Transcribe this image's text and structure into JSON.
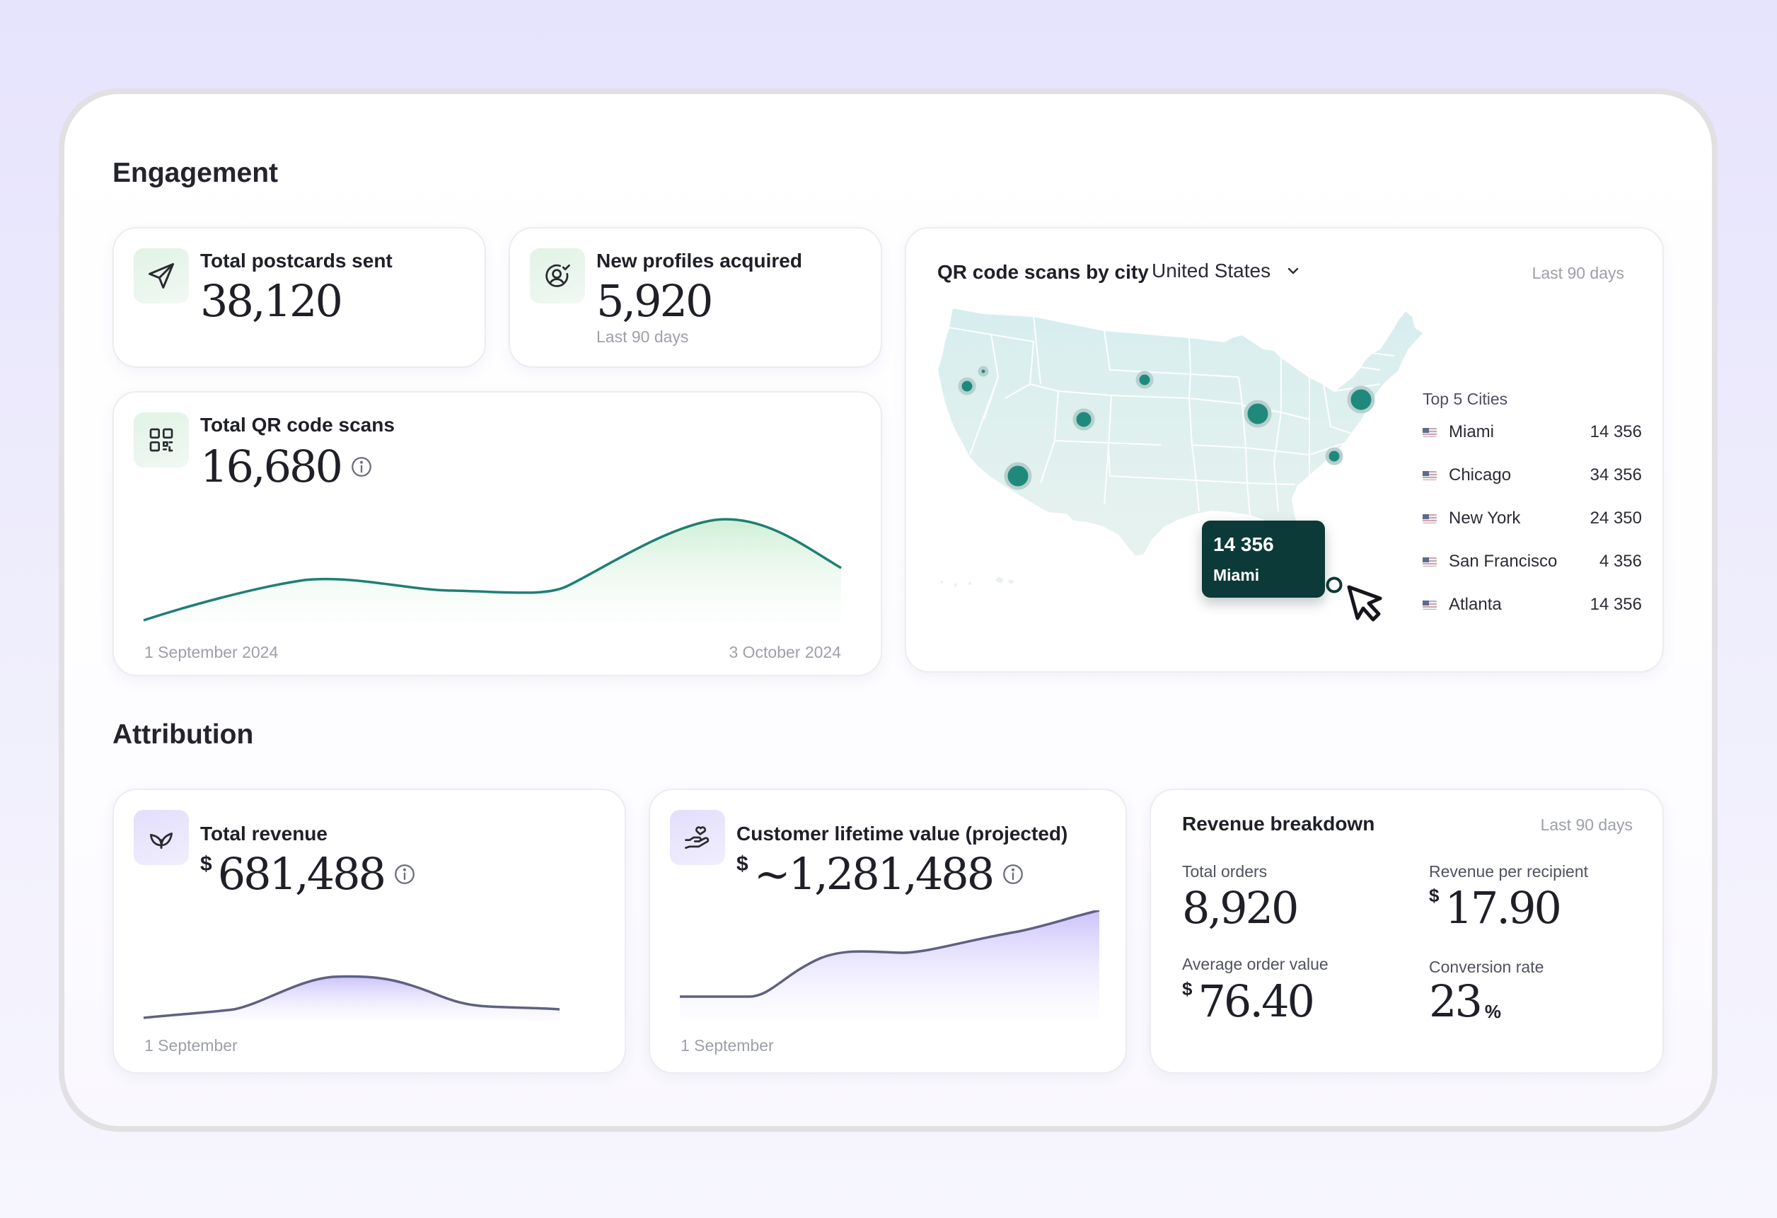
{
  "engagement": {
    "title": "Engagement",
    "postcards": {
      "label": "Total postcards sent",
      "value": "38,120"
    },
    "profiles": {
      "label": "New profiles acquired",
      "value": "5,920",
      "period": "Last 90 days"
    },
    "qr_scans": {
      "label": "Total QR code scans",
      "value": "16,680",
      "start_label": "1 September 2024",
      "end_label": "3 October 2024"
    },
    "map": {
      "title": "QR code scans by city",
      "country": "United States",
      "period": "Last 90 days",
      "top_title": "Top 5 Cities",
      "cities": [
        {
          "name": "Miami",
          "value": "14 356"
        },
        {
          "name": "Chicago",
          "value": "34 356"
        },
        {
          "name": "New York",
          "value": "24 350"
        },
        {
          "name": "San Francisco",
          "value": "4 356"
        },
        {
          "name": "Atlanta",
          "value": "14 356"
        }
      ],
      "tooltip": {
        "value": "14 356",
        "city": "Miami"
      }
    }
  },
  "attribution": {
    "title": "Attribution",
    "revenue": {
      "label": "Total revenue",
      "currency": "$",
      "value": "681,488",
      "start_label": "1 September"
    },
    "ltv": {
      "label": "Customer lifetime value (projected)",
      "currency": "$",
      "value": "~1,281,488",
      "start_label": "1 September"
    },
    "breakdown": {
      "title": "Revenue breakdown",
      "period": "Last 90 days",
      "total_orders_label": "Total orders",
      "total_orders": "8,920",
      "rpr_label": "Revenue per recipient",
      "rpr_currency": "$",
      "rpr": "17.90",
      "aov_label": "Average order value",
      "aov_currency": "$",
      "aov": "76.40",
      "conv_label": "Conversion rate",
      "conv": "23",
      "conv_unit": "%"
    }
  },
  "colors": {
    "teal": "#1f7f73",
    "dark_teal": "#0c3a38",
    "purple_line": "#5f6180",
    "purple_fill": "#cfc6fb"
  },
  "icons": [
    "send-icon",
    "user-check-icon",
    "qr-code-icon",
    "info-icon",
    "chevron-down-icon",
    "flag-us-icon",
    "leaf-icon",
    "hand-heart-icon",
    "cursor-icon"
  ]
}
